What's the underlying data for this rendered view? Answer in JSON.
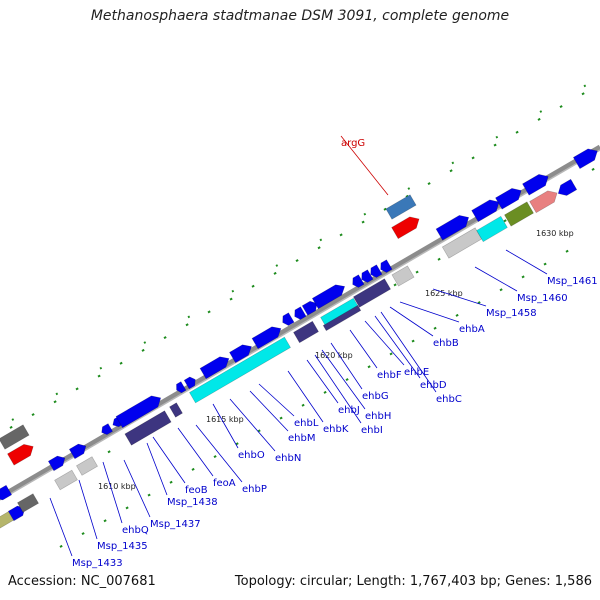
{
  "title": "Methanosphaera stadtmanae DSM 3091, complete genome",
  "footer": {
    "accession": "Accession: NC_007681",
    "stats": "Topology: circular; Length: 1,767,403 bp; Genes: 1,586"
  },
  "colors": {
    "background": "#ffffff",
    "backbone": "#8c8c8c",
    "tick": "#1e8c1e",
    "label": "#0000cc",
    "highlight_label": "#cc0000",
    "cds_blue": "#0000ee",
    "cds_cyan": "#00e8e8",
    "cds_navy": "#3d3580",
    "cds_gray": "#c8c8c8",
    "cds_darkgray": "#666666",
    "cds_red": "#ee0000",
    "cds_steel": "#3a78b8",
    "cds_olive": "#6b8e23",
    "cds_salmon": "#e88080",
    "cds_khaki": "#b5b56b"
  },
  "scale_labels": [
    "1610 kbp",
    "1615 kbp",
    "1620 kbp",
    "1625 kbp",
    "1630 kbp"
  ],
  "gene_labels": [
    {
      "text": "Msp_1433",
      "color": "label"
    },
    {
      "text": "Msp_1435",
      "color": "label"
    },
    {
      "text": "ehbQ",
      "color": "label"
    },
    {
      "text": "Msp_1437",
      "color": "label"
    },
    {
      "text": "Msp_1438",
      "color": "label"
    },
    {
      "text": "feoB",
      "color": "label"
    },
    {
      "text": "feoA",
      "color": "label"
    },
    {
      "text": "ehbP",
      "color": "label"
    },
    {
      "text": "ehbO",
      "color": "label"
    },
    {
      "text": "ehbN",
      "color": "label"
    },
    {
      "text": "ehbM",
      "color": "label"
    },
    {
      "text": "ehbL",
      "color": "label"
    },
    {
      "text": "ehbK",
      "color": "label"
    },
    {
      "text": "ehbJ",
      "color": "label"
    },
    {
      "text": "ehbI",
      "color": "label"
    },
    {
      "text": "ehbH",
      "color": "label"
    },
    {
      "text": "ehbG",
      "color": "label"
    },
    {
      "text": "ehbF",
      "color": "label"
    },
    {
      "text": "ehbE",
      "color": "label"
    },
    {
      "text": "ehbD",
      "color": "label"
    },
    {
      "text": "ehbC",
      "color": "label"
    },
    {
      "text": "ehbB",
      "color": "label"
    },
    {
      "text": "ehbA",
      "color": "label"
    },
    {
      "text": "Msp_1458",
      "color": "label"
    },
    {
      "text": "Msp_1460",
      "color": "label"
    },
    {
      "text": "Msp_1461",
      "color": "label"
    },
    {
      "text": "argG",
      "color": "highlight_label"
    }
  ]
}
